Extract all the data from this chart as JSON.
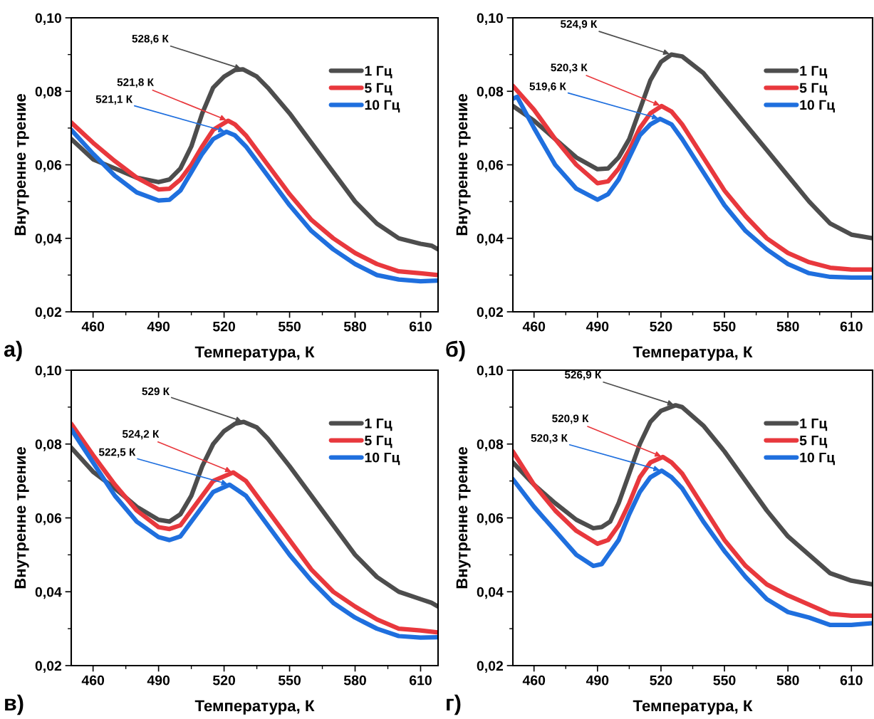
{
  "chart_data": [
    {
      "type": "line",
      "title": "а)",
      "xlabel": "Температура, К",
      "ylabel": "Внутренне трение",
      "xlim": [
        450,
        618
      ],
      "ylim": [
        0.02,
        0.1
      ],
      "xticks": [
        460,
        490,
        520,
        550,
        580,
        610
      ],
      "yticks": [
        {
          "value": 0.02,
          "label": "0,02"
        },
        {
          "value": 0.04,
          "label": "0,04"
        },
        {
          "value": 0.06,
          "label": "0,06"
        },
        {
          "value": 0.08,
          "label": "0,08"
        },
        {
          "value": 0.1,
          "label": "0,10"
        }
      ],
      "legend": "top right",
      "grid": false,
      "marker": "none",
      "line_style": "solid",
      "series": [
        {
          "name": "1 Гц",
          "color": "#4d4d4d",
          "x": [
            450,
            460,
            470,
            480,
            490,
            495,
            500,
            505,
            510,
            515,
            520,
            525,
            528.6,
            535,
            540,
            550,
            560,
            570,
            580,
            590,
            600,
            610,
            615,
            618
          ],
          "values": [
            0.067,
            0.0615,
            0.059,
            0.0565,
            0.0553,
            0.056,
            0.059,
            0.065,
            0.074,
            0.081,
            0.084,
            0.0858,
            0.086,
            0.084,
            0.081,
            0.074,
            0.066,
            0.058,
            0.05,
            0.044,
            0.04,
            0.0385,
            0.038,
            0.037
          ]
        },
        {
          "name": "5 Гц",
          "color": "#e8383d",
          "x": [
            450,
            460,
            470,
            480,
            490,
            495,
            500,
            505,
            510,
            515,
            521.8,
            525,
            530,
            540,
            550,
            560,
            570,
            580,
            590,
            600,
            610,
            618
          ],
          "values": [
            0.0715,
            0.066,
            0.061,
            0.0565,
            0.0533,
            0.0535,
            0.056,
            0.06,
            0.065,
            0.0695,
            0.072,
            0.071,
            0.068,
            0.06,
            0.052,
            0.045,
            0.04,
            0.036,
            0.033,
            0.031,
            0.0305,
            0.03
          ]
        },
        {
          "name": "10 Гц",
          "color": "#1f6fde",
          "x": [
            450,
            460,
            470,
            480,
            490,
            495,
            500,
            505,
            510,
            515,
            521.1,
            525,
            530,
            540,
            550,
            560,
            570,
            580,
            590,
            600,
            610,
            618
          ],
          "values": [
            0.0695,
            0.063,
            0.057,
            0.0525,
            0.0503,
            0.0505,
            0.053,
            0.058,
            0.063,
            0.067,
            0.069,
            0.068,
            0.065,
            0.057,
            0.049,
            0.042,
            0.037,
            0.033,
            0.03,
            0.0288,
            0.0283,
            0.0285
          ]
        }
      ],
      "annotations": [
        {
          "text": "528,6 К",
          "x": 528.6,
          "y": 0.086
        },
        {
          "text": "521,8 К",
          "x": 521.8,
          "y": 0.072
        },
        {
          "text": "521,1 К",
          "x": 521.1,
          "y": 0.069
        }
      ]
    },
    {
      "type": "line",
      "title": "б)",
      "xlabel": "Температура, К",
      "ylabel": "Внутренне трение",
      "xlim": [
        450,
        620
      ],
      "ylim": [
        0.02,
        0.1
      ],
      "xticks": [
        460,
        490,
        520,
        550,
        580,
        610
      ],
      "yticks": [
        {
          "value": 0.02,
          "label": "0,02"
        },
        {
          "value": 0.04,
          "label": "0,04"
        },
        {
          "value": 0.06,
          "label": "0,06"
        },
        {
          "value": 0.08,
          "label": "0,08"
        },
        {
          "value": 0.1,
          "label": "0,10"
        }
      ],
      "legend": "top right",
      "grid": false,
      "marker": "none",
      "line_style": "solid",
      "series": [
        {
          "name": "1 Гц",
          "color": "#4d4d4d",
          "x": [
            450,
            460,
            470,
            480,
            490,
            495,
            500,
            505,
            510,
            515,
            520,
            524.9,
            530,
            540,
            550,
            560,
            570,
            580,
            590,
            600,
            610,
            620
          ],
          "values": [
            0.076,
            0.072,
            0.067,
            0.062,
            0.0588,
            0.059,
            0.062,
            0.067,
            0.075,
            0.083,
            0.088,
            0.09,
            0.0895,
            0.085,
            0.078,
            0.071,
            0.064,
            0.057,
            0.05,
            0.044,
            0.041,
            0.04
          ]
        },
        {
          "name": "5 Гц",
          "color": "#e8383d",
          "x": [
            450,
            460,
            470,
            480,
            490,
            495,
            500,
            505,
            510,
            515,
            520.3,
            525,
            530,
            540,
            550,
            560,
            570,
            580,
            590,
            600,
            610,
            620
          ],
          "values": [
            0.0815,
            0.075,
            0.067,
            0.06,
            0.055,
            0.0555,
            0.059,
            0.064,
            0.07,
            0.074,
            0.076,
            0.0745,
            0.071,
            0.062,
            0.053,
            0.046,
            0.04,
            0.036,
            0.0335,
            0.032,
            0.0315,
            0.0315
          ]
        },
        {
          "name": "10 Гц",
          "color": "#1f6fde",
          "x": [
            450,
            452,
            460,
            470,
            480,
            490,
            495,
            500,
            505,
            510,
            515,
            519.6,
            525,
            530,
            540,
            550,
            560,
            570,
            580,
            590,
            600,
            610,
            620
          ],
          "values": [
            0.078,
            0.0785,
            0.07,
            0.06,
            0.0535,
            0.0505,
            0.052,
            0.056,
            0.062,
            0.068,
            0.071,
            0.0725,
            0.071,
            0.067,
            0.058,
            0.049,
            0.042,
            0.037,
            0.033,
            0.0305,
            0.0295,
            0.0293,
            0.0293
          ]
        }
      ],
      "annotations": [
        {
          "text": "524,9 К",
          "x": 524.9,
          "y": 0.09
        },
        {
          "text": "520,3 К",
          "x": 520.3,
          "y": 0.076
        },
        {
          "text": "519,6 К",
          "x": 519.6,
          "y": 0.0725
        }
      ]
    },
    {
      "type": "line",
      "title": "в)",
      "xlabel": "Температура, К",
      "ylabel": "Внутренне трение",
      "xlim": [
        450,
        618
      ],
      "ylim": [
        0.02,
        0.1
      ],
      "xticks": [
        460,
        490,
        520,
        550,
        580,
        610
      ],
      "yticks": [
        {
          "value": 0.02,
          "label": "0,02"
        },
        {
          "value": 0.04,
          "label": "0,04"
        },
        {
          "value": 0.06,
          "label": "0,06"
        },
        {
          "value": 0.08,
          "label": "0,08"
        },
        {
          "value": 0.1,
          "label": "0,10"
        }
      ],
      "legend": "top right",
      "grid": false,
      "marker": "none",
      "line_style": "solid",
      "series": [
        {
          "name": "1 Гц",
          "color": "#4d4d4d",
          "x": [
            450,
            460,
            470,
            480,
            490,
            495,
            500,
            505,
            510,
            515,
            520,
            525,
            529,
            535,
            540,
            550,
            560,
            570,
            580,
            590,
            600,
            610,
            615,
            618
          ],
          "values": [
            0.079,
            0.0725,
            0.068,
            0.063,
            0.0595,
            0.059,
            0.061,
            0.066,
            0.074,
            0.08,
            0.0835,
            0.0855,
            0.086,
            0.0845,
            0.0815,
            0.074,
            0.066,
            0.058,
            0.05,
            0.044,
            0.04,
            0.038,
            0.037,
            0.036
          ]
        },
        {
          "name": "5 Гц",
          "color": "#e8383d",
          "x": [
            450,
            460,
            470,
            480,
            490,
            495,
            500,
            505,
            510,
            515,
            524.2,
            530,
            540,
            550,
            560,
            570,
            580,
            590,
            600,
            610,
            618
          ],
          "values": [
            0.0855,
            0.077,
            0.069,
            0.062,
            0.0575,
            0.057,
            0.058,
            0.062,
            0.066,
            0.07,
            0.0723,
            0.07,
            0.062,
            0.054,
            0.046,
            0.04,
            0.036,
            0.0325,
            0.03,
            0.0295,
            0.029
          ]
        },
        {
          "name": "10 Гц",
          "color": "#1f6fde",
          "x": [
            450,
            460,
            470,
            480,
            490,
            495,
            500,
            505,
            510,
            515,
            522.5,
            530,
            540,
            550,
            560,
            570,
            580,
            590,
            600,
            610,
            618
          ],
          "values": [
            0.084,
            0.075,
            0.066,
            0.059,
            0.0548,
            0.054,
            0.055,
            0.059,
            0.063,
            0.067,
            0.069,
            0.066,
            0.058,
            0.05,
            0.043,
            0.037,
            0.033,
            0.03,
            0.028,
            0.0276,
            0.0277
          ]
        }
      ],
      "annotations": [
        {
          "text": "529 К",
          "x": 529,
          "y": 0.086
        },
        {
          "text": "524,2 К",
          "x": 524.2,
          "y": 0.0723
        },
        {
          "text": "522,5 К",
          "x": 522.5,
          "y": 0.069
        }
      ]
    },
    {
      "type": "line",
      "title": "г)",
      "xlabel": "Температура, К",
      "ylabel": "Внутренне трение",
      "xlim": [
        450,
        620
      ],
      "ylim": [
        0.02,
        0.1
      ],
      "xticks": [
        460,
        490,
        520,
        550,
        580,
        610
      ],
      "yticks": [
        {
          "value": 0.02,
          "label": "0,02"
        },
        {
          "value": 0.04,
          "label": "0,04"
        },
        {
          "value": 0.06,
          "label": "0,06"
        },
        {
          "value": 0.08,
          "label": "0,08"
        },
        {
          "value": 0.1,
          "label": "0,10"
        }
      ],
      "legend": "top right",
      "grid": false,
      "marker": "none",
      "line_style": "solid",
      "series": [
        {
          "name": "1 Гц",
          "color": "#4d4d4d",
          "x": [
            450,
            460,
            470,
            480,
            488,
            492,
            496,
            500,
            505,
            510,
            515,
            520,
            526.9,
            530,
            540,
            550,
            560,
            570,
            580,
            590,
            600,
            610,
            620
          ],
          "values": [
            0.075,
            0.069,
            0.064,
            0.0595,
            0.0572,
            0.0575,
            0.059,
            0.064,
            0.072,
            0.08,
            0.086,
            0.089,
            0.0905,
            0.09,
            0.085,
            0.078,
            0.07,
            0.062,
            0.055,
            0.05,
            0.045,
            0.043,
            0.042
          ]
        },
        {
          "name": "5 Гц",
          "color": "#e8383d",
          "x": [
            450,
            460,
            470,
            480,
            490,
            495,
            500,
            505,
            510,
            515,
            520.9,
            525,
            530,
            540,
            550,
            560,
            570,
            580,
            590,
            600,
            610,
            620
          ],
          "values": [
            0.078,
            0.069,
            0.062,
            0.0565,
            0.053,
            0.054,
            0.058,
            0.064,
            0.071,
            0.075,
            0.0765,
            0.075,
            0.072,
            0.063,
            0.054,
            0.047,
            0.042,
            0.039,
            0.0365,
            0.034,
            0.0335,
            0.0335
          ]
        },
        {
          "name": "10 Гц",
          "color": "#1f6fde",
          "x": [
            450,
            460,
            470,
            480,
            488,
            492,
            500,
            505,
            510,
            515,
            520.3,
            525,
            530,
            540,
            550,
            560,
            570,
            580,
            590,
            600,
            610,
            620
          ],
          "values": [
            0.0705,
            0.063,
            0.0565,
            0.05,
            0.047,
            0.0475,
            0.054,
            0.061,
            0.067,
            0.071,
            0.0728,
            0.071,
            0.068,
            0.059,
            0.051,
            0.044,
            0.038,
            0.0345,
            0.033,
            0.031,
            0.031,
            0.0315
          ]
        }
      ],
      "annotations": [
        {
          "text": "526,9 К",
          "x": 526.9,
          "y": 0.0905
        },
        {
          "text": "520,9 К",
          "x": 520.9,
          "y": 0.0765
        },
        {
          "text": "520,3 К",
          "x": 520.3,
          "y": 0.0728
        }
      ]
    }
  ]
}
